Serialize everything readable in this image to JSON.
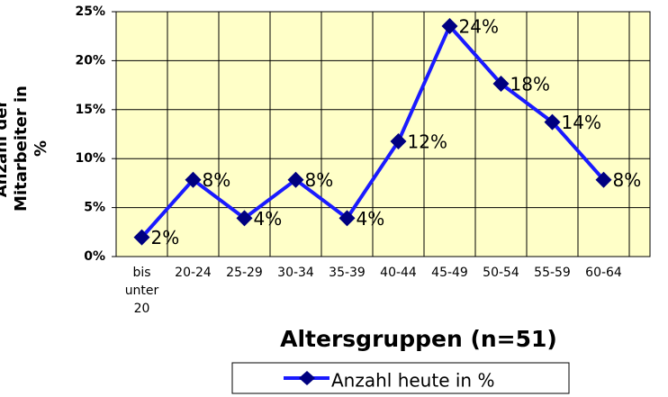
{
  "chart_data": {
    "type": "line",
    "x_label": "Altersgruppen (n=51)",
    "y_label": "Anzahl der Mitarbeiter in %",
    "categories": [
      "bis unter 20",
      "20-24",
      "25-29",
      "30-34",
      "35-39",
      "40-44",
      "45-49",
      "50-54",
      "55-59",
      "60-64"
    ],
    "series": [
      {
        "name": "Anzahl heute in %",
        "color": "#1a1aff",
        "values": [
          1.96,
          7.84,
          3.92,
          7.84,
          3.92,
          11.76,
          23.53,
          17.65,
          13.73,
          7.84
        ],
        "value_labels": [
          "2%",
          "8%",
          "4%",
          "8%",
          "4%",
          "12%",
          "24%",
          "18%",
          "14%",
          "8%"
        ]
      }
    ],
    "ylim": [
      0,
      25
    ],
    "yticks": [
      {
        "value": 0,
        "label": "0%"
      },
      {
        "value": 5,
        "label": "5%"
      },
      {
        "value": 10,
        "label": "10%"
      },
      {
        "value": 15,
        "label": "15%"
      },
      {
        "value": 20,
        "label": "20%"
      },
      {
        "value": 25,
        "label": "25%"
      }
    ],
    "grid": true,
    "legend": "bottom",
    "plot_background": "#ffffc8"
  }
}
